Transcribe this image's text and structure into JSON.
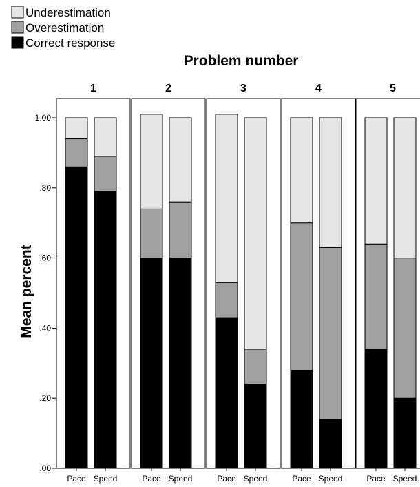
{
  "chart_data": {
    "type": "bar",
    "stacked": true,
    "title": "Problem number",
    "ylabel": "Mean percent",
    "xlabel": "",
    "ylim": [
      0,
      1.0
    ],
    "yticks": [
      0,
      0.2,
      0.4,
      0.6,
      0.8,
      1.0
    ],
    "ytick_labels": [
      ".00",
      ".20",
      ".40",
      ".60",
      ".80",
      "1.00"
    ],
    "categories": [
      "Pace",
      "Speed"
    ],
    "legend": {
      "placement": "top-left",
      "entries": [
        {
          "name": "Underestimation",
          "color": "#e6e6e6"
        },
        {
          "name": "Overestimation",
          "color": "#a0a0a0"
        },
        {
          "name": "Correct response",
          "color": "#000000"
        }
      ]
    },
    "panels": [
      {
        "label": "1",
        "bars": [
          {
            "category": "Pace",
            "correct": 0.86,
            "overestimation": 0.08,
            "underestimation": 0.06
          },
          {
            "category": "Speed",
            "correct": 0.79,
            "overestimation": 0.1,
            "underestimation": 0.11
          }
        ]
      },
      {
        "label": "2",
        "bars": [
          {
            "category": "Pace",
            "correct": 0.6,
            "overestimation": 0.14,
            "underestimation": 0.27
          },
          {
            "category": "Speed",
            "correct": 0.6,
            "overestimation": 0.16,
            "underestimation": 0.24
          }
        ]
      },
      {
        "label": "3",
        "bars": [
          {
            "category": "Pace",
            "correct": 0.43,
            "overestimation": 0.1,
            "underestimation": 0.48
          },
          {
            "category": "Speed",
            "correct": 0.24,
            "overestimation": 0.1,
            "underestimation": 0.66
          }
        ]
      },
      {
        "label": "4",
        "bars": [
          {
            "category": "Pace",
            "correct": 0.28,
            "overestimation": 0.42,
            "underestimation": 0.3
          },
          {
            "category": "Speed",
            "correct": 0.14,
            "overestimation": 0.49,
            "underestimation": 0.37
          }
        ]
      },
      {
        "label": "5",
        "bars": [
          {
            "category": "Pace",
            "correct": 0.34,
            "overestimation": 0.3,
            "underestimation": 0.36
          },
          {
            "category": "Speed",
            "correct": 0.2,
            "overestimation": 0.4,
            "underestimation": 0.4
          }
        ]
      }
    ]
  }
}
